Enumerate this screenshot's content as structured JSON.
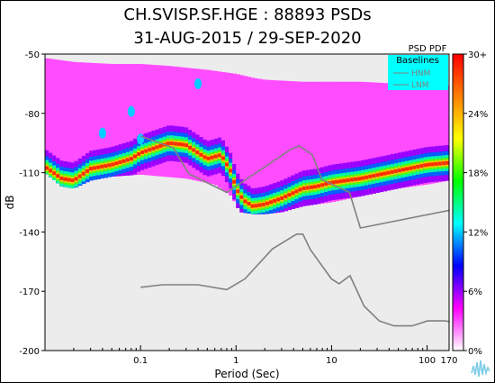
{
  "colors": {
    "background": "#ffffff",
    "plot_background": "#ececec",
    "colormap": [
      "#ffffff",
      "#ff00ff",
      "#0000ff",
      "#00ffff",
      "#00ff00",
      "#ffff00",
      "#ff8000",
      "#ff0000"
    ],
    "baseline": "#808080",
    "legend_box": "#00ffff"
  },
  "chart_data": {
    "type": "heatmap",
    "title": "CH.SVISP.SF.HGE : 88893 PSDs",
    "subtitle": "31-AUG-2015 / 29-SEP-2020",
    "xlabel": "Period (Sec)",
    "ylabel": "dB",
    "x_scale": "log",
    "xlim": [
      0.01,
      170
    ],
    "ylim": [
      -200,
      -50
    ],
    "x_ticks": [
      0.1,
      1,
      10,
      100,
      170
    ],
    "x_tick_labels": [
      "0.1",
      "1",
      "10",
      "100",
      "170"
    ],
    "y_ticks": [
      -50,
      -80,
      -110,
      -140,
      -170,
      -200
    ],
    "y_tick_labels": [
      "-50",
      "-80",
      "-110",
      "-140",
      "-170",
      "-200"
    ],
    "colorbar": {
      "title": "PSD PDF",
      "ticks": [
        0,
        6,
        12,
        18,
        24,
        30
      ],
      "tick_labels": [
        "0%",
        "6%",
        "12%",
        "18%",
        "24%",
        "30+"
      ]
    },
    "legend": {
      "title": "Baselines",
      "placement": "top-right",
      "entries": [
        "HNM",
        "LNM"
      ]
    },
    "mode_curve": {
      "name": "",
      "x": [
        0.01,
        0.015,
        0.02,
        0.03,
        0.05,
        0.08,
        0.1,
        0.2,
        0.3,
        0.5,
        0.7,
        0.9,
        1.0,
        1.2,
        1.5,
        2,
        3,
        5,
        7,
        10,
        20,
        50,
        100,
        170
      ],
      "y": [
        -107,
        -113,
        -114,
        -108,
        -106,
        -103,
        -100,
        -95,
        -96,
        -103,
        -101,
        -110,
        -118,
        -124,
        -127,
        -126,
        -123,
        -118,
        -117,
        -115,
        -113,
        -109,
        -106,
        -105
      ]
    },
    "upper_envelope": {
      "x": [
        0.01,
        0.02,
        0.05,
        0.1,
        0.2,
        0.5,
        1,
        1.5,
        2,
        5,
        10,
        20,
        50,
        100,
        170
      ],
      "y": [
        -52,
        -54,
        -55,
        -55,
        -56,
        -58,
        -60,
        -62,
        -63,
        -64,
        -64,
        -64,
        -65,
        -65,
        -66
      ]
    },
    "lower_envelope": {
      "x": [
        0.01,
        0.015,
        0.02,
        0.03,
        0.05,
        0.1,
        0.3,
        0.6,
        0.9,
        1.1,
        1.5,
        2,
        3,
        5,
        10,
        20,
        50,
        100,
        170
      ],
      "y": [
        -110,
        -117,
        -118,
        -114,
        -112,
        -111,
        -113,
        -116,
        -122,
        -130,
        -131,
        -131,
        -130,
        -127,
        -125,
        -122,
        -118,
        -116,
        -114
      ]
    },
    "hot_spots": [
      {
        "x": 0.4,
        "y": -65
      },
      {
        "x": 0.08,
        "y": -79
      },
      {
        "x": 0.04,
        "y": -90
      },
      {
        "x": 0.1,
        "y": -93
      }
    ],
    "baselines": {
      "HNM": {
        "x": [
          0.1,
          0.22,
          0.32,
          0.8,
          3.8,
          4.6,
          6.3,
          7.9,
          15.4,
          20,
          354.8
        ],
        "y": [
          -91.5,
          -97.4,
          -110.5,
          -120,
          -98,
          -96.5,
          -101,
          -113.5,
          -120,
          -138,
          -126
        ]
      },
      "LNM": {
        "x": [
          0.1,
          0.17,
          0.4,
          0.8,
          1.24,
          2.4,
          4.3,
          5,
          6,
          10,
          12,
          15.6,
          21.9,
          31.6,
          45,
          70,
          101,
          154,
          328,
          600
        ],
        "y": [
          -168,
          -166.7,
          -166.7,
          -169.2,
          -163.7,
          -148.6,
          -141.1,
          -141.1,
          -149,
          -163.8,
          -166.2,
          -162.1,
          -177.5,
          -185,
          -187.5,
          -187.5,
          -185,
          -185,
          -187.5,
          -184.4
        ]
      }
    }
  },
  "logo": {
    "icon": "waveform-logo-icon"
  }
}
